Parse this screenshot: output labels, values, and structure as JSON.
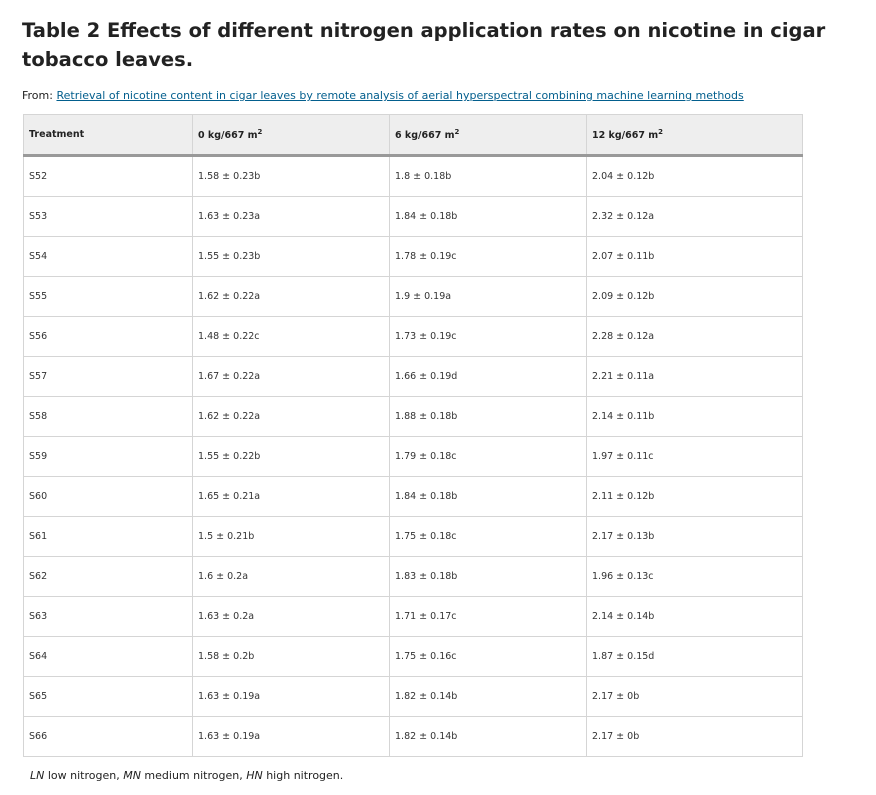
{
  "title": "Table 2 Effects of different nitrogen application rates on nicotine in cigar tobacco leaves.",
  "from": {
    "prefix": "From: ",
    "link_text": "Retrieval of nicotine content in cigar leaves by remote analysis of aerial hyperspectral combining machine learning methods"
  },
  "table": {
    "headers": [
      {
        "text": "Treatment",
        "sup": ""
      },
      {
        "text": "0 kg/667 m",
        "sup": "2"
      },
      {
        "text": "6 kg/667 m",
        "sup": "2"
      },
      {
        "text": "12 kg/667 m",
        "sup": "2"
      }
    ],
    "rows": [
      [
        "S52",
        "1.58 ± 0.23b",
        "1.8 ± 0.18b",
        "2.04 ± 0.12b"
      ],
      [
        "S53",
        "1.63 ± 0.23a",
        "1.84 ± 0.18b",
        "2.32 ± 0.12a"
      ],
      [
        "S54",
        "1.55 ± 0.23b",
        "1.78 ± 0.19c",
        "2.07 ± 0.11b"
      ],
      [
        "S55",
        "1.62 ± 0.22a",
        "1.9 ± 0.19a",
        "2.09 ± 0.12b"
      ],
      [
        "S56",
        "1.48 ± 0.22c",
        "1.73 ± 0.19c",
        "2.28 ± 0.12a"
      ],
      [
        "S57",
        "1.67 ± 0.22a",
        "1.66 ± 0.19d",
        "2.21 ± 0.11a"
      ],
      [
        "S58",
        "1.62 ± 0.22a",
        "1.88 ± 0.18b",
        "2.14 ± 0.11b"
      ],
      [
        "S59",
        "1.55 ± 0.22b",
        "1.79 ± 0.18c",
        "1.97 ± 0.11c"
      ],
      [
        "S60",
        "1.65 ± 0.21a",
        "1.84 ± 0.18b",
        "2.11 ± 0.12b"
      ],
      [
        "S61",
        "1.5 ± 0.21b",
        "1.75 ± 0.18c",
        "2.17 ± 0.13b"
      ],
      [
        "S62",
        "1.6 ± 0.2a",
        "1.83 ± 0.18b",
        "1.96 ± 0.13c"
      ],
      [
        "S63",
        "1.63 ± 0.2a",
        "1.71 ± 0.17c",
        "2.14 ± 0.14b"
      ],
      [
        "S64",
        "1.58 ± 0.2b",
        "1.75 ± 0.16c",
        "1.87 ± 0.15d"
      ],
      [
        "S65",
        "1.63 ± 0.19a",
        "1.82 ± 0.14b",
        "2.17 ± 0b"
      ],
      [
        "S66",
        "1.63 ± 0.19a",
        "1.82 ± 0.14b",
        "2.17 ± 0b"
      ]
    ]
  },
  "footnote": [
    {
      "abbr": "LN",
      "text": " low nitrogen, "
    },
    {
      "abbr": "MN",
      "text": " medium nitrogen, "
    },
    {
      "abbr": "HN",
      "text": " high nitrogen."
    }
  ]
}
